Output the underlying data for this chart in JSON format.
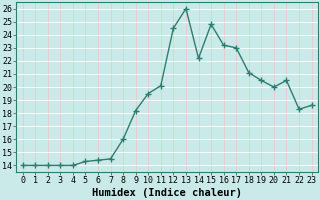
{
  "x": [
    0,
    1,
    2,
    3,
    4,
    5,
    6,
    7,
    8,
    9,
    10,
    11,
    12,
    13,
    14,
    15,
    16,
    17,
    18,
    19,
    20,
    21,
    22,
    23
  ],
  "y": [
    14,
    14,
    14,
    14,
    14,
    14.3,
    14.4,
    14.5,
    16.0,
    18.2,
    19.5,
    20.1,
    24.5,
    26.0,
    22.2,
    24.8,
    23.2,
    23.0,
    21.1,
    20.5,
    20.0,
    20.5,
    18.3,
    18.6
  ],
  "line_color": "#2e7d6e",
  "marker": "+",
  "marker_size": 4,
  "marker_linewidth": 1.0,
  "xlabel": "Humidex (Indice chaleur)",
  "ylabel": "",
  "xlim": [
    -0.5,
    23.5
  ],
  "ylim": [
    13.5,
    26.5
  ],
  "yticks": [
    14,
    15,
    16,
    17,
    18,
    19,
    20,
    21,
    22,
    23,
    24,
    25,
    26
  ],
  "xticks": [
    0,
    1,
    2,
    3,
    4,
    5,
    6,
    7,
    8,
    9,
    10,
    11,
    12,
    13,
    14,
    15,
    16,
    17,
    18,
    19,
    20,
    21,
    22,
    23
  ],
  "bg_color": "#caeaea",
  "grid_color": "#b0d8d8",
  "tick_fontsize": 6,
  "xlabel_fontsize": 7.5,
  "linewidth": 1.0
}
